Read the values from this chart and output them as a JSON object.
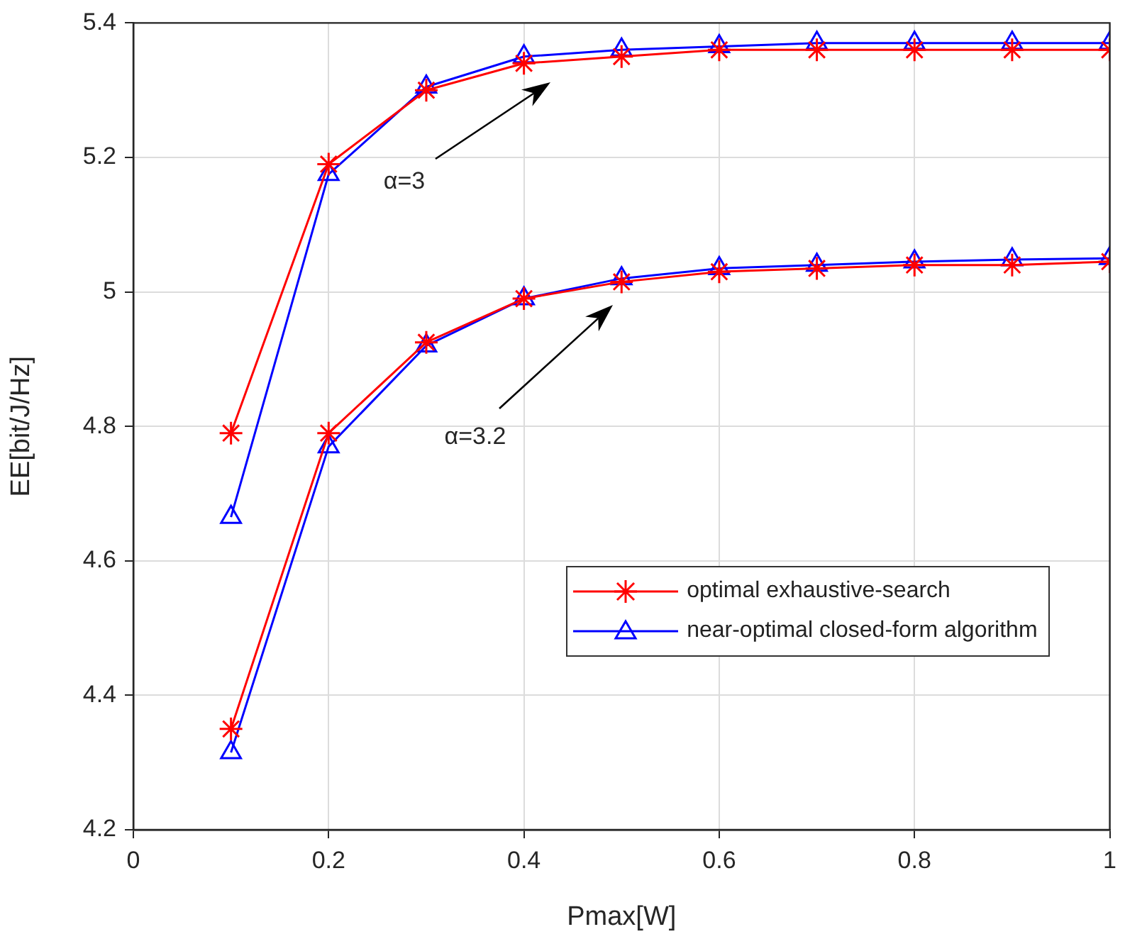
{
  "chart_data": {
    "type": "line",
    "xlabel": "Pmax[W]",
    "ylabel": "EE[bit/J/Hz]",
    "x": [
      0.1,
      0.2,
      0.3,
      0.4,
      0.5,
      0.6,
      0.7,
      0.8,
      0.9,
      1
    ],
    "series": [
      {
        "name": "optimal exhaustive-search",
        "color": "#ff0000",
        "marker": "cross",
        "values": [
          4.79,
          5.19,
          5.3,
          5.34,
          5.35,
          5.36,
          5.36,
          5.36,
          5.36,
          5.36
        ]
      },
      {
        "name": "near-optimal closed-form algorithm",
        "color": "#0000ff",
        "marker": "triangle",
        "values": [
          4.665,
          5.175,
          5.305,
          5.35,
          5.36,
          5.365,
          5.37,
          5.37,
          5.37,
          5.37
        ]
      },
      {
        "color": "#ff0000",
        "marker": "cross",
        "values": [
          4.35,
          4.79,
          4.925,
          4.99,
          5.015,
          5.03,
          5.035,
          5.04,
          5.04,
          5.045
        ]
      },
      {
        "color": "#0000ff",
        "marker": "triangle",
        "values": [
          4.315,
          4.77,
          4.92,
          4.99,
          5.02,
          5.035,
          5.04,
          5.045,
          5.048,
          5.05
        ]
      }
    ],
    "xlim": [
      0,
      1
    ],
    "xticks": [
      0,
      0.2,
      0.4,
      0.6,
      0.8,
      1
    ],
    "ylim": [
      4.2,
      5.4
    ],
    "yticks": [
      4.2,
      4.4,
      4.6,
      4.8,
      5,
      5.2,
      5.4
    ],
    "grid": true,
    "legend": "bottom right",
    "line_style": "solid",
    "annotations": [
      "α=3",
      "α=3.2"
    ]
  }
}
